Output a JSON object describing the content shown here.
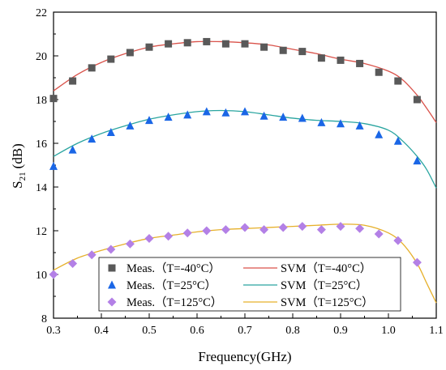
{
  "chart_data": {
    "type": "scatter",
    "xlabel": "Frequency(GHz)",
    "ylabel_main": "S",
    "ylabel_sub": "21",
    "ylabel_unit": "(dB)",
    "xlim": [
      0.3,
      1.1
    ],
    "ylim": [
      8,
      22
    ],
    "x_ticks": [
      0.3,
      0.4,
      0.5,
      0.6,
      0.7,
      0.8,
      0.9,
      1.0,
      1.1
    ],
    "x_tick_labels": [
      "0.3",
      "0.4",
      "0.5",
      "0.6",
      "0.7",
      "0.8",
      "0.9",
      "1.0",
      "1.1"
    ],
    "y_ticks": [
      8,
      10,
      12,
      14,
      16,
      18,
      20,
      22
    ],
    "y_tick_labels": [
      "8",
      "10",
      "12",
      "14",
      "16",
      "18",
      "20",
      "22"
    ],
    "grid": false,
    "legend_position": "bottom",
    "series": [
      {
        "name": "Meas.（T=-40°C）",
        "kind": "scatter",
        "marker": "square",
        "color": "#595959",
        "x": [
          0.3,
          0.34,
          0.38,
          0.42,
          0.46,
          0.5,
          0.54,
          0.58,
          0.62,
          0.66,
          0.7,
          0.74,
          0.78,
          0.82,
          0.86,
          0.9,
          0.94,
          0.98,
          1.02,
          1.06
        ],
        "y": [
          18.05,
          18.85,
          19.45,
          19.85,
          20.15,
          20.4,
          20.55,
          20.6,
          20.65,
          20.55,
          20.55,
          20.4,
          20.25,
          20.2,
          19.9,
          19.8,
          19.65,
          19.25,
          18.85,
          18.0
        ]
      },
      {
        "name": "Meas.（T=25°C）",
        "kind": "scatter",
        "marker": "triangle",
        "color": "#1a66e6",
        "x": [
          0.3,
          0.34,
          0.38,
          0.42,
          0.46,
          0.5,
          0.54,
          0.58,
          0.62,
          0.66,
          0.7,
          0.74,
          0.78,
          0.82,
          0.86,
          0.9,
          0.94,
          0.98,
          1.02,
          1.06
        ],
        "y": [
          14.95,
          15.7,
          16.2,
          16.5,
          16.8,
          17.05,
          17.2,
          17.3,
          17.45,
          17.4,
          17.45,
          17.25,
          17.2,
          17.15,
          16.95,
          16.9,
          16.8,
          16.4,
          16.1,
          15.2
        ]
      },
      {
        "name": "Meas.（T=125°C）",
        "kind": "scatter",
        "marker": "diamond",
        "color": "#b380e6",
        "x": [
          0.3,
          0.34,
          0.38,
          0.42,
          0.46,
          0.5,
          0.54,
          0.58,
          0.62,
          0.66,
          0.7,
          0.74,
          0.78,
          0.82,
          0.86,
          0.9,
          0.94,
          0.98,
          1.02,
          1.06
        ],
        "y": [
          10.0,
          10.5,
          10.9,
          11.15,
          11.4,
          11.65,
          11.75,
          11.9,
          12.0,
          12.05,
          12.15,
          12.05,
          12.15,
          12.2,
          12.05,
          12.2,
          12.1,
          11.85,
          11.55,
          10.55
        ]
      },
      {
        "name": "SVM（T=-40°C）",
        "kind": "line",
        "color": "#d9524a",
        "x": [
          0.3,
          0.35,
          0.4,
          0.45,
          0.5,
          0.55,
          0.6,
          0.65,
          0.7,
          0.75,
          0.8,
          0.85,
          0.9,
          0.95,
          1.0,
          1.03,
          1.06,
          1.08,
          1.1
        ],
        "y": [
          18.4,
          19.15,
          19.7,
          20.1,
          20.4,
          20.55,
          20.65,
          20.65,
          20.6,
          20.5,
          20.3,
          20.1,
          19.85,
          19.65,
          19.3,
          18.9,
          18.2,
          17.6,
          16.95
        ]
      },
      {
        "name": "SVM（T=25°C）",
        "kind": "line",
        "color": "#2aa5a0",
        "x": [
          0.3,
          0.35,
          0.4,
          0.45,
          0.5,
          0.55,
          0.6,
          0.65,
          0.7,
          0.75,
          0.8,
          0.85,
          0.9,
          0.95,
          1.0,
          1.03,
          1.06,
          1.08,
          1.1
        ],
        "y": [
          15.4,
          16.0,
          16.45,
          16.8,
          17.1,
          17.3,
          17.45,
          17.5,
          17.45,
          17.3,
          17.15,
          17.05,
          17.0,
          16.9,
          16.6,
          16.1,
          15.4,
          14.8,
          13.95
        ]
      },
      {
        "name": "SVM（T=125°C）",
        "kind": "line",
        "color": "#e6b02a",
        "x": [
          0.3,
          0.35,
          0.4,
          0.45,
          0.5,
          0.55,
          0.6,
          0.65,
          0.7,
          0.75,
          0.8,
          0.85,
          0.9,
          0.95,
          1.0,
          1.03,
          1.06,
          1.08,
          1.1
        ],
        "y": [
          10.2,
          10.75,
          11.1,
          11.4,
          11.65,
          11.8,
          11.95,
          12.05,
          12.1,
          12.15,
          12.2,
          12.25,
          12.3,
          12.25,
          11.9,
          11.4,
          10.5,
          9.6,
          8.7
        ]
      }
    ]
  }
}
